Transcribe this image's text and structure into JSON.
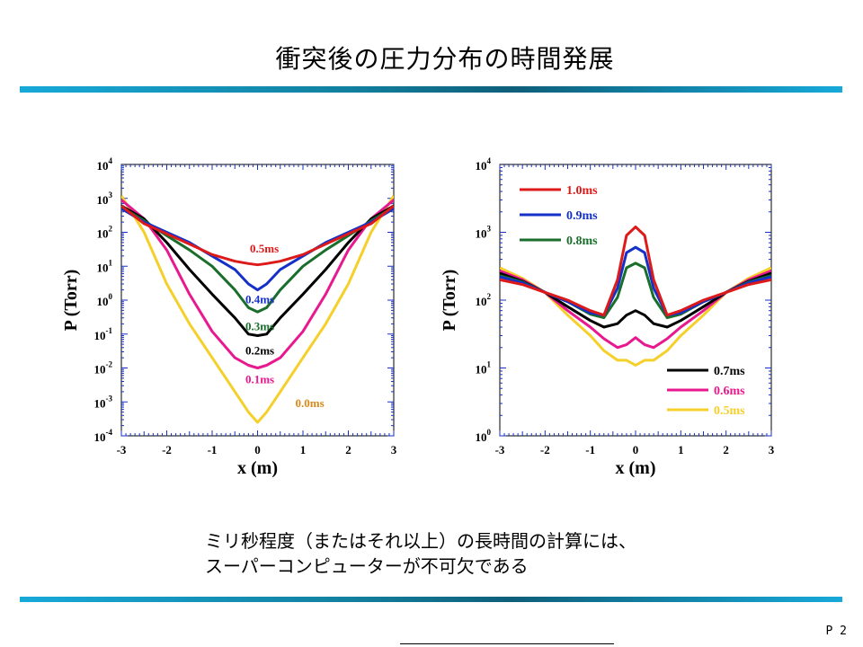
{
  "slide": {
    "title": "衝突後の圧力分布の時間発展",
    "caption_line1": "ミリ秒程度（またはそれ以上）の長時間の計算には、",
    "caption_line2": "スーパーコンピューターが不可欠である",
    "page_number": "P 2"
  },
  "chart_data": [
    {
      "type": "line",
      "xlabel": "x (m)",
      "ylabel": "P (Torr)",
      "xlim": [
        -3,
        3
      ],
      "yscale": "log",
      "ylim": [
        0.0001,
        10000
      ],
      "xticks": [
        "-3",
        "-2",
        "-1",
        "0",
        "1",
        "2",
        "3"
      ],
      "yticks": [
        {
          "base": "10",
          "exp": "4"
        },
        {
          "base": "10",
          "exp": "3"
        },
        {
          "base": "10",
          "exp": "2"
        },
        {
          "base": "10",
          "exp": "1"
        },
        {
          "base": "10",
          "exp": "0"
        },
        {
          "base": "10",
          "exp": "-1"
        },
        {
          "base": "10",
          "exp": "-2"
        },
        {
          "base": "10",
          "exp": "-3"
        },
        {
          "base": "10",
          "exp": "-4"
        }
      ],
      "series": [
        {
          "name": "0.5ms",
          "color": "#dd1a1a",
          "x": [
            -3,
            -2.5,
            -2,
            -1.5,
            -1,
            -0.5,
            -0.2,
            0,
            0.2,
            0.5,
            1,
            1.5,
            2,
            2.5,
            3
          ],
          "y": [
            600,
            180,
            90,
            45,
            22,
            14,
            12,
            11,
            12,
            14,
            22,
            45,
            90,
            180,
            600
          ]
        },
        {
          "name": "0.4ms",
          "color": "#1530c8",
          "x": [
            -3,
            -2.5,
            -2,
            -1.5,
            -1,
            -0.5,
            -0.2,
            0,
            0.2,
            0.5,
            1,
            1.5,
            2,
            2.5,
            3
          ],
          "y": [
            500,
            200,
            100,
            50,
            20,
            8,
            3,
            2,
            3,
            8,
            20,
            50,
            100,
            200,
            500
          ]
        },
        {
          "name": "0.3ms",
          "color": "#1a6e2c",
          "x": [
            -3,
            -2.5,
            -2,
            -1.5,
            -1,
            -0.5,
            -0.2,
            0,
            0.2,
            0.5,
            1,
            1.5,
            2,
            2.5,
            3
          ],
          "y": [
            550,
            220,
            80,
            30,
            10,
            2,
            0.6,
            0.45,
            0.6,
            2,
            10,
            30,
            80,
            220,
            550
          ]
        },
        {
          "name": "0.2ms",
          "color": "#000000",
          "x": [
            -3,
            -2.5,
            -2,
            -1.5,
            -1,
            -0.5,
            -0.2,
            0,
            0.2,
            0.5,
            1,
            1.5,
            2,
            2.5,
            3
          ],
          "y": [
            600,
            250,
            50,
            8,
            1.5,
            0.3,
            0.1,
            0.09,
            0.1,
            0.3,
            1.5,
            8,
            50,
            250,
            600
          ]
        },
        {
          "name": "0.1ms",
          "color": "#e8198f",
          "x": [
            -3,
            -2.5,
            -2,
            -1.5,
            -1,
            -0.5,
            -0.2,
            0,
            0.2,
            0.5,
            1,
            1.5,
            2,
            2.5,
            3
          ],
          "y": [
            900,
            250,
            30,
            1.5,
            0.12,
            0.02,
            0.012,
            0.01,
            0.012,
            0.02,
            0.12,
            1.5,
            30,
            250,
            900
          ]
        },
        {
          "name": "0.0ms",
          "color": "#f5cf2a",
          "x": [
            -3,
            -2.5,
            -2,
            -1.5,
            -1,
            -0.5,
            -0.2,
            0,
            0.2,
            0.5,
            1,
            1.5,
            2,
            2.5,
            3
          ],
          "y": [
            1200,
            100,
            3,
            0.2,
            0.02,
            0.002,
            0.0005,
            0.00025,
            0.0005,
            0.002,
            0.02,
            0.2,
            3,
            100,
            1200
          ]
        }
      ],
      "labels": [
        {
          "text": "0.5ms",
          "color": "#dd1a1a",
          "x": 0.15,
          "y": 25
        },
        {
          "text": "0.4ms",
          "color": "#1530c8",
          "x": 0.05,
          "y": 0.8
        },
        {
          "text": "0.3ms",
          "color": "#1a6e2c",
          "x": 0.05,
          "y": 0.13
        },
        {
          "text": "0.2ms",
          "color": "#000000",
          "x": 0.05,
          "y": 0.025
        },
        {
          "text": "0.1ms",
          "color": "#e8198f",
          "x": 0.05,
          "y": 0.0035
        },
        {
          "text": "0.0ms",
          "color": "#d88a1a",
          "x": 1.15,
          "y": 0.0007
        }
      ]
    },
    {
      "type": "line",
      "xlabel": "x (m)",
      "ylabel": "P (Torr)",
      "xlim": [
        -3,
        3
      ],
      "yscale": "log",
      "ylim": [
        1,
        10000
      ],
      "xticks": [
        "-3",
        "-2",
        "-1",
        "0",
        "1",
        "2",
        "3"
      ],
      "yticks": [
        {
          "base": "10",
          "exp": "4"
        },
        {
          "base": "10",
          "exp": "3"
        },
        {
          "base": "10",
          "exp": "2"
        },
        {
          "base": "10",
          "exp": "1"
        },
        {
          "base": "10",
          "exp": "0"
        }
      ],
      "legend_upper": "top-left",
      "legend_lower": "bottom-right",
      "series": [
        {
          "name": "1.0ms",
          "color": "#dd1a1a",
          "legend": "upper",
          "x": [
            -3,
            -2.5,
            -2,
            -1.5,
            -1,
            -0.7,
            -0.4,
            -0.2,
            0,
            0.2,
            0.4,
            0.7,
            1,
            1.5,
            2,
            2.5,
            3
          ],
          "y": [
            200,
            170,
            130,
            100,
            70,
            60,
            200,
            900,
            1200,
            900,
            200,
            60,
            70,
            100,
            130,
            170,
            200
          ]
        },
        {
          "name": "0.9ms",
          "color": "#1530c8",
          "legend": "upper",
          "x": [
            -3,
            -2.5,
            -2,
            -1.5,
            -1,
            -0.7,
            -0.4,
            -0.2,
            0,
            0.2,
            0.4,
            0.7,
            1,
            1.5,
            2,
            2.5,
            3
          ],
          "y": [
            220,
            180,
            130,
            95,
            65,
            60,
            150,
            500,
            600,
            500,
            150,
            60,
            65,
            95,
            130,
            180,
            220
          ]
        },
        {
          "name": "0.8ms",
          "color": "#1a6e2c",
          "legend": "upper",
          "x": [
            -3,
            -2.5,
            -2,
            -1.5,
            -1,
            -0.7,
            -0.4,
            -0.2,
            0,
            0.2,
            0.4,
            0.7,
            1,
            1.5,
            2,
            2.5,
            3
          ],
          "y": [
            230,
            185,
            130,
            95,
            62,
            55,
            110,
            300,
            350,
            300,
            110,
            55,
            62,
            95,
            130,
            185,
            230
          ]
        },
        {
          "name": "0.7ms",
          "color": "#000000",
          "legend": "lower",
          "x": [
            -3,
            -2.5,
            -2,
            -1.5,
            -1,
            -0.7,
            -0.4,
            -0.2,
            0,
            0.2,
            0.4,
            0.7,
            1,
            1.5,
            2,
            2.5,
            3
          ],
          "y": [
            250,
            190,
            130,
            80,
            50,
            40,
            45,
            60,
            70,
            60,
            45,
            40,
            50,
            80,
            130,
            190,
            250
          ]
        },
        {
          "name": "0.6ms",
          "color": "#e8198f",
          "legend": "lower",
          "x": [
            -3,
            -2.5,
            -2,
            -1.5,
            -1,
            -0.7,
            -0.4,
            -0.2,
            0,
            0.2,
            0.4,
            0.7,
            1,
            1.5,
            2,
            2.5,
            3
          ],
          "y": [
            270,
            200,
            130,
            70,
            40,
            27,
            20,
            22,
            28,
            22,
            20,
            27,
            40,
            70,
            130,
            200,
            270
          ]
        },
        {
          "name": "0.5ms",
          "color": "#f5cf2a",
          "legend": "lower",
          "x": [
            -3,
            -2.5,
            -2,
            -1.5,
            -1,
            -0.7,
            -0.4,
            -0.2,
            0,
            0.2,
            0.4,
            0.7,
            1,
            1.5,
            2,
            2.5,
            3
          ],
          "y": [
            300,
            210,
            130,
            60,
            30,
            18,
            13,
            13,
            11,
            13,
            13,
            18,
            30,
            60,
            130,
            210,
            300
          ]
        }
      ]
    }
  ]
}
